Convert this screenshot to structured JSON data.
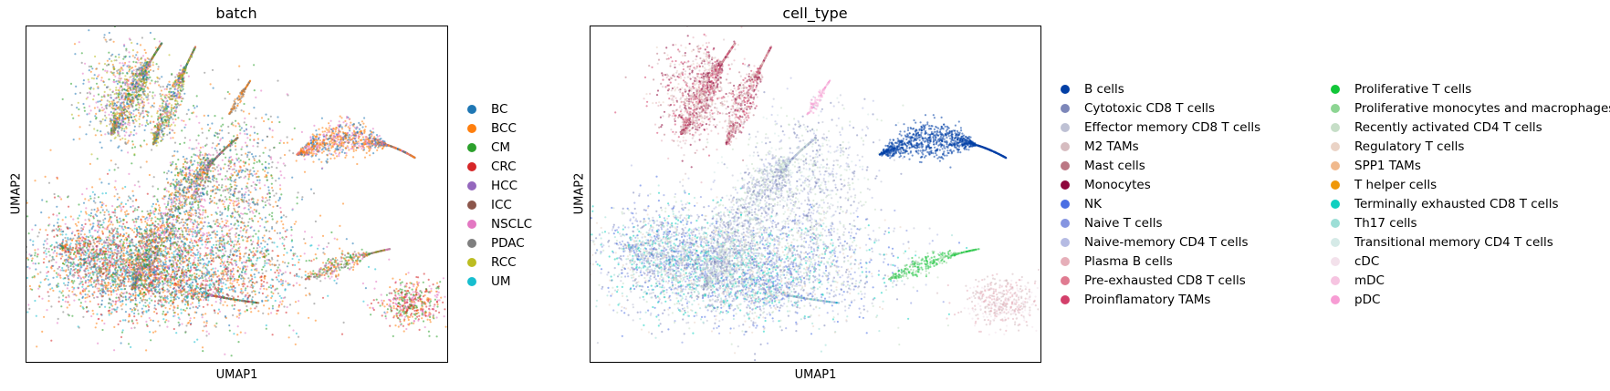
{
  "chart_data": [
    {
      "type": "scatter",
      "title": "batch",
      "xlabel": "UMAP1",
      "ylabel": "UMAP2",
      "grid": false,
      "legend_placement": "right",
      "series": [
        {
          "name": "BC",
          "color": "#1f77b4"
        },
        {
          "name": "BCC",
          "color": "#ff7f0e"
        },
        {
          "name": "CM",
          "color": "#2ca02c"
        },
        {
          "name": "CRC",
          "color": "#d62728"
        },
        {
          "name": "HCC",
          "color": "#9467bd"
        },
        {
          "name": "ICC",
          "color": "#8c564b"
        },
        {
          "name": "NSCLC",
          "color": "#e377c2"
        },
        {
          "name": "PDAC",
          "color": "#7f7f7f"
        },
        {
          "name": "RCC",
          "color": "#bcbd22"
        },
        {
          "name": "UM",
          "color": "#17becf"
        }
      ]
    },
    {
      "type": "scatter",
      "title": "cell_type",
      "xlabel": "UMAP1",
      "ylabel": "UMAP2",
      "grid": false,
      "legend_placement": "right",
      "series": [
        {
          "name": "B cells",
          "color": "#023fa5"
        },
        {
          "name": "Cytotoxic CD8 T cells",
          "color": "#7d87b9"
        },
        {
          "name": "Effector memory CD8 T cells",
          "color": "#bec1d4"
        },
        {
          "name": "M2 TAMs",
          "color": "#d6bcc0"
        },
        {
          "name": "Mast cells",
          "color": "#bb7784"
        },
        {
          "name": "Monocytes",
          "color": "#8e063b"
        },
        {
          "name": "NK",
          "color": "#4a6fe3"
        },
        {
          "name": "Naive T cells",
          "color": "#8595e1"
        },
        {
          "name": "Naive-memory CD4 T cells",
          "color": "#b5bbe3"
        },
        {
          "name": "Plasma B cells",
          "color": "#e6afb9"
        },
        {
          "name": "Pre-exhausted CD8 T cells",
          "color": "#e07b91"
        },
        {
          "name": "Proinflamatory TAMs",
          "color": "#d33f6a"
        },
        {
          "name": "Proliferative T cells",
          "color": "#11c638"
        },
        {
          "name": "Proliferative monocytes and macrophages",
          "color": "#8dd593"
        },
        {
          "name": "Recently activated CD4 T cells",
          "color": "#c6dec7"
        },
        {
          "name": "Regulatory T cells",
          "color": "#ead3c6"
        },
        {
          "name": "SPP1 TAMs",
          "color": "#f0b98d"
        },
        {
          "name": "T helper cells",
          "color": "#ef9708"
        },
        {
          "name": "Terminally exhausted CD8 T cells",
          "color": "#0fcfc0"
        },
        {
          "name": "Th17 cells",
          "color": "#9cded6"
        },
        {
          "name": "Transitional memory CD4 T cells",
          "color": "#d5eae7"
        },
        {
          "name": "cDC",
          "color": "#f3e1eb"
        },
        {
          "name": "mDC",
          "color": "#f6c4e1"
        },
        {
          "name": "pDC",
          "color": "#f79cd4"
        }
      ]
    }
  ]
}
